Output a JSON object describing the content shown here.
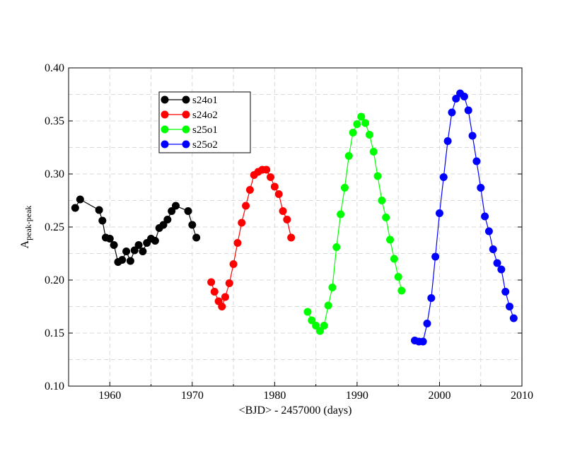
{
  "chart_data": {
    "type": "line",
    "title": "",
    "xlabel": "<BJD> - 2457000 (days)",
    "ylabel_main": "A",
    "ylabel_sub": "peak-peak",
    "xlim": [
      1955,
      2010
    ],
    "ylim": [
      0.1,
      0.4
    ],
    "xticks": [
      1960,
      1970,
      1980,
      1990,
      2000,
      2010
    ],
    "xtick_labels": [
      "1960",
      "1970",
      "1980",
      "1990",
      "2000",
      "2010"
    ],
    "yticks": [
      0.1,
      0.15,
      0.2,
      0.25,
      0.3,
      0.35,
      0.4
    ],
    "ytick_labels": [
      "0.10",
      "0.15",
      "0.20",
      "0.25",
      "0.30",
      "0.35",
      "0.40"
    ],
    "grid": true,
    "legend_position": "top-left",
    "series": [
      {
        "name": "s24o1",
        "color": "#000000",
        "points": [
          [
            1955.8,
            0.268
          ],
          [
            1956.4,
            0.276
          ],
          [
            1958.7,
            0.266
          ],
          [
            1959.1,
            0.256
          ],
          [
            1959.5,
            0.24
          ],
          [
            1960.0,
            0.239
          ],
          [
            1960.5,
            0.233
          ],
          [
            1961.0,
            0.217
          ],
          [
            1961.5,
            0.219
          ],
          [
            1962.0,
            0.227
          ],
          [
            1962.5,
            0.218
          ],
          [
            1963.0,
            0.228
          ],
          [
            1963.5,
            0.233
          ],
          [
            1964.0,
            0.227
          ],
          [
            1964.5,
            0.235
          ],
          [
            1965.0,
            0.239
          ],
          [
            1965.5,
            0.237
          ],
          [
            1966.0,
            0.249
          ],
          [
            1966.5,
            0.252
          ],
          [
            1967.0,
            0.257
          ],
          [
            1967.5,
            0.265
          ],
          [
            1968.0,
            0.27
          ],
          [
            1969.5,
            0.265
          ],
          [
            1970.0,
            0.252
          ],
          [
            1970.5,
            0.24
          ]
        ]
      },
      {
        "name": "s24o2",
        "color": "#ff0000",
        "points": [
          [
            1972.3,
            0.198
          ],
          [
            1972.7,
            0.189
          ],
          [
            1973.2,
            0.18
          ],
          [
            1973.6,
            0.175
          ],
          [
            1974.0,
            0.184
          ],
          [
            1974.5,
            0.197
          ],
          [
            1975.0,
            0.215
          ],
          [
            1975.5,
            0.235
          ],
          [
            1976.0,
            0.254
          ],
          [
            1976.5,
            0.27
          ],
          [
            1977.0,
            0.285
          ],
          [
            1977.5,
            0.299
          ],
          [
            1978.0,
            0.302
          ],
          [
            1978.5,
            0.304
          ],
          [
            1979.0,
            0.304
          ],
          [
            1979.5,
            0.297
          ],
          [
            1980.0,
            0.288
          ],
          [
            1980.5,
            0.281
          ],
          [
            1981.0,
            0.265
          ],
          [
            1981.5,
            0.257
          ],
          [
            1982.0,
            0.24
          ]
        ]
      },
      {
        "name": "s25o1",
        "color": "#00ff00",
        "points": [
          [
            1984.0,
            0.17
          ],
          [
            1984.5,
            0.162
          ],
          [
            1985.0,
            0.157
          ],
          [
            1985.5,
            0.152
          ],
          [
            1986.0,
            0.157
          ],
          [
            1986.5,
            0.176
          ],
          [
            1987.0,
            0.193
          ],
          [
            1987.5,
            0.231
          ],
          [
            1988.0,
            0.262
          ],
          [
            1988.5,
            0.287
          ],
          [
            1989.0,
            0.317
          ],
          [
            1989.5,
            0.339
          ],
          [
            1990.0,
            0.347
          ],
          [
            1990.5,
            0.354
          ],
          [
            1991.0,
            0.348
          ],
          [
            1991.5,
            0.337
          ],
          [
            1992.0,
            0.321
          ],
          [
            1992.5,
            0.298
          ],
          [
            1993.0,
            0.275
          ],
          [
            1993.5,
            0.259
          ],
          [
            1994.0,
            0.238
          ],
          [
            1994.5,
            0.22
          ],
          [
            1995.0,
            0.203
          ],
          [
            1995.4,
            0.19
          ]
        ]
      },
      {
        "name": "s25o2",
        "color": "#0000ff",
        "points": [
          [
            1997.0,
            0.143
          ],
          [
            1997.5,
            0.142
          ],
          [
            1998.0,
            0.142
          ],
          [
            1998.5,
            0.159
          ],
          [
            1999.0,
            0.183
          ],
          [
            1999.5,
            0.222
          ],
          [
            2000.0,
            0.263
          ],
          [
            2000.5,
            0.297
          ],
          [
            2001.0,
            0.331
          ],
          [
            2001.5,
            0.358
          ],
          [
            2002.0,
            0.371
          ],
          [
            2002.5,
            0.376
          ],
          [
            2003.0,
            0.373
          ],
          [
            2003.5,
            0.36
          ],
          [
            2004.0,
            0.336
          ],
          [
            2004.5,
            0.312
          ],
          [
            2005.0,
            0.287
          ],
          [
            2005.5,
            0.26
          ],
          [
            2006.0,
            0.246
          ],
          [
            2006.5,
            0.229
          ],
          [
            2007.0,
            0.216
          ],
          [
            2007.5,
            0.21
          ],
          [
            2008.0,
            0.189
          ],
          [
            2008.5,
            0.175
          ],
          [
            2009.0,
            0.164
          ]
        ]
      }
    ]
  }
}
